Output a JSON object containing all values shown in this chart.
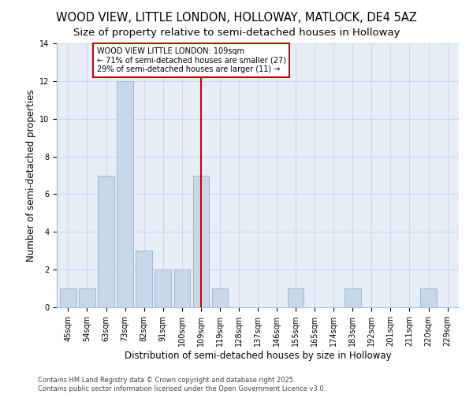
{
  "title1": "WOOD VIEW, LITTLE LONDON, HOLLOWAY, MATLOCK, DE4 5AZ",
  "title2": "Size of property relative to semi-detached houses in Holloway",
  "xlabel": "Distribution of semi-detached houses by size in Holloway",
  "ylabel": "Number of semi-detached properties",
  "categories": [
    "45sqm",
    "54sqm",
    "63sqm",
    "73sqm",
    "82sqm",
    "91sqm",
    "100sqm",
    "109sqm",
    "119sqm",
    "128sqm",
    "137sqm",
    "146sqm",
    "155sqm",
    "165sqm",
    "174sqm",
    "183sqm",
    "192sqm",
    "201sqm",
    "211sqm",
    "220sqm",
    "229sqm"
  ],
  "values": [
    1,
    1,
    7,
    12,
    3,
    2,
    2,
    7,
    1,
    0,
    0,
    0,
    1,
    0,
    0,
    1,
    0,
    0,
    0,
    1,
    0
  ],
  "bar_color": "#c8d8e8",
  "bar_edge_color": "#a0b8d0",
  "highlight_index": 7,
  "vline_x": 7,
  "vline_color": "#cc0000",
  "annotation_text": "WOOD VIEW LITTLE LONDON: 109sqm\n← 71% of semi-detached houses are smaller (27)\n29% of semi-detached houses are larger (11) →",
  "annotation_box_color": "#ffffff",
  "annotation_box_edge": "#cc0000",
  "ylim": [
    0,
    14
  ],
  "yticks": [
    0,
    2,
    4,
    6,
    8,
    10,
    12,
    14
  ],
  "grid_color": "#d0d8e8",
  "background_color": "#e8eef8",
  "footnote": "Contains HM Land Registry data © Crown copyright and database right 2025.\nContains public sector information licensed under the Open Government Licence v3.0.",
  "title_fontsize": 10.5,
  "subtitle_fontsize": 9.5,
  "axis_label_fontsize": 8.5,
  "tick_fontsize": 7,
  "annotation_fontsize": 7,
  "footnote_fontsize": 6
}
